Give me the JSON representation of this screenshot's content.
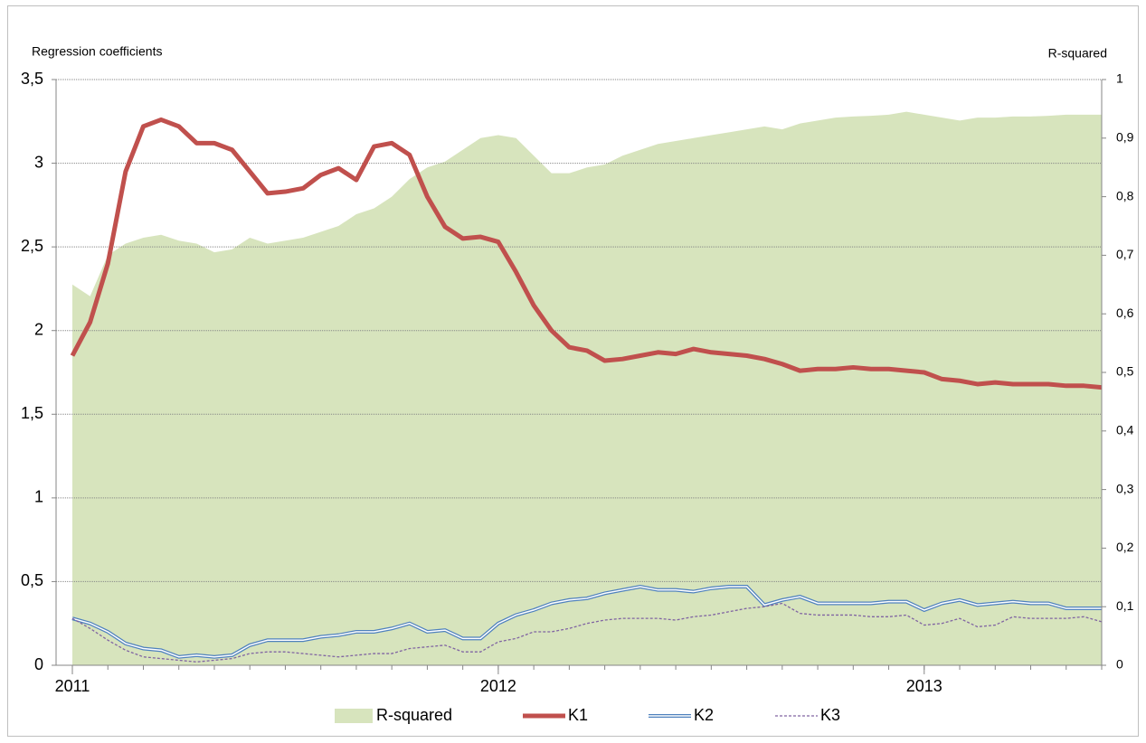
{
  "chart_data": {
    "type": "line",
    "ylabel": "Regression coefficients",
    "y2label": "R-squared",
    "categories": [
      "2011",
      null,
      null,
      null,
      null,
      null,
      null,
      null,
      null,
      null,
      null,
      null,
      null,
      null,
      null,
      null,
      null,
      null,
      null,
      null,
      null,
      null,
      null,
      null,
      "2012",
      null,
      null,
      null,
      null,
      null,
      null,
      null,
      null,
      null,
      null,
      null,
      null,
      null,
      null,
      null,
      null,
      null,
      null,
      null,
      null,
      null,
      null,
      null,
      "2013",
      null,
      null,
      null,
      null,
      null,
      null,
      null,
      null,
      null,
      null
    ],
    "ylim": [
      0,
      3.5
    ],
    "yticks": [
      0,
      {
        "value": 0.5,
        "label": "0,5"
      },
      1,
      {
        "value": 1.5,
        "label": "1,5"
      },
      2,
      {
        "value": 2.5,
        "label": "2,5"
      },
      3,
      {
        "value": 3.5,
        "label": "3,5"
      }
    ],
    "y2lim": [
      0,
      1
    ],
    "y2ticks": [
      0,
      {
        "value": 0.1,
        "label": "0,1"
      },
      {
        "value": 0.2,
        "label": "0,2"
      },
      {
        "value": 0.3,
        "label": "0,3"
      },
      {
        "value": 0.4,
        "label": "0,4"
      },
      {
        "value": 0.5,
        "label": "0,5"
      },
      {
        "value": 0.6,
        "label": "0,6"
      },
      {
        "value": 0.7,
        "label": "0,7"
      },
      {
        "value": 0.8,
        "label": "0,8"
      },
      {
        "value": 0.9,
        "label": "0,9"
      },
      1
    ],
    "grid": true,
    "legend": "bottom",
    "series": [
      {
        "name": "R-squared",
        "color": "#d7e4bd",
        "style": "area",
        "axis": "y2",
        "values": [
          0.65,
          0.63,
          0.7,
          0.72,
          0.73,
          0.735,
          0.725,
          0.72,
          0.705,
          0.71,
          0.73,
          0.72,
          0.725,
          0.73,
          0.74,
          0.75,
          0.77,
          0.78,
          0.8,
          0.83,
          0.85,
          0.86,
          0.88,
          0.9,
          0.905,
          0.9,
          0.87,
          0.84,
          0.84,
          0.85,
          0.855,
          0.87,
          0.88,
          0.89,
          0.895,
          0.9,
          0.905,
          0.91,
          0.915,
          0.92,
          0.915,
          0.925,
          0.93,
          0.935,
          0.937,
          0.938,
          0.94,
          0.945,
          0.94,
          0.935,
          0.93,
          0.935,
          0.935,
          0.937,
          0.937,
          0.938,
          0.94,
          0.94,
          0.94
        ]
      },
      {
        "name": "K1",
        "color": "#c0504d",
        "style": "thick",
        "values": [
          1.85,
          2.05,
          2.4,
          2.95,
          3.22,
          3.26,
          3.22,
          3.12,
          3.12,
          3.08,
          2.95,
          2.82,
          2.83,
          2.85,
          2.93,
          2.97,
          2.9,
          3.1,
          3.12,
          3.05,
          2.8,
          2.62,
          2.55,
          2.56,
          2.53,
          2.35,
          2.15,
          2.0,
          1.9,
          1.88,
          1.82,
          1.83,
          1.85,
          1.87,
          1.86,
          1.89,
          1.87,
          1.86,
          1.85,
          1.83,
          1.8,
          1.76,
          1.77,
          1.77,
          1.78,
          1.77,
          1.77,
          1.76,
          1.75,
          1.71,
          1.7,
          1.68,
          1.69,
          1.68,
          1.68,
          1.68,
          1.67,
          1.67,
          1.66
        ]
      },
      {
        "name": "K2",
        "color": "#4f81bd",
        "style": "double",
        "values": [
          0.28,
          0.25,
          0.2,
          0.13,
          0.1,
          0.09,
          0.05,
          0.06,
          0.05,
          0.06,
          0.12,
          0.15,
          0.15,
          0.15,
          0.17,
          0.18,
          0.2,
          0.2,
          0.22,
          0.25,
          0.2,
          0.21,
          0.16,
          0.16,
          0.25,
          0.3,
          0.33,
          0.37,
          0.39,
          0.4,
          0.43,
          0.45,
          0.47,
          0.45,
          0.45,
          0.44,
          0.46,
          0.47,
          0.47,
          0.36,
          0.39,
          0.41,
          0.37,
          0.37,
          0.37,
          0.37,
          0.38,
          0.38,
          0.33,
          0.37,
          0.39,
          0.36,
          0.37,
          0.38,
          0.37,
          0.37,
          0.34,
          0.34,
          0.34
        ]
      },
      {
        "name": "K3",
        "color": "#8064a2",
        "style": "dashed",
        "values": [
          0.28,
          0.22,
          0.15,
          0.09,
          0.05,
          0.04,
          0.03,
          0.02,
          0.03,
          0.04,
          0.07,
          0.08,
          0.08,
          0.07,
          0.06,
          0.05,
          0.06,
          0.07,
          0.07,
          0.1,
          0.11,
          0.12,
          0.08,
          0.08,
          0.14,
          0.16,
          0.2,
          0.2,
          0.22,
          0.25,
          0.27,
          0.28,
          0.28,
          0.28,
          0.27,
          0.29,
          0.3,
          0.32,
          0.34,
          0.35,
          0.37,
          0.31,
          0.3,
          0.3,
          0.3,
          0.29,
          0.29,
          0.3,
          0.24,
          0.25,
          0.28,
          0.23,
          0.24,
          0.29,
          0.28,
          0.28,
          0.28,
          0.29,
          0.26
        ]
      }
    ]
  }
}
